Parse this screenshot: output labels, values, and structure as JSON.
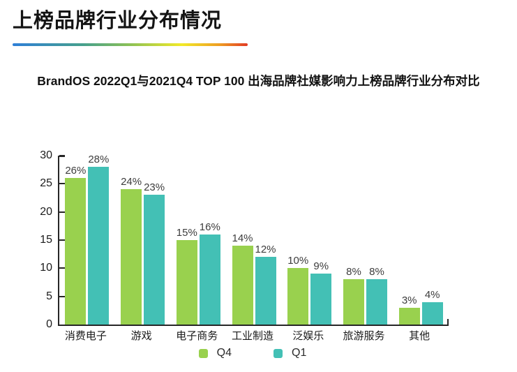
{
  "page": {
    "title": "上榜品牌行业分布情况",
    "subtitle": "BrandOS 2022Q1与2021Q4 TOP 100 出海品牌社媒影响力上榜品牌行业分布对比"
  },
  "chart_data": {
    "type": "bar",
    "title": "BrandOS 2022Q1与2021Q4 TOP 100 出海品牌社媒影响力上榜品牌行业分布对比",
    "categories": [
      "消费电子",
      "游戏",
      "电子商务",
      "工业制造",
      "泛娱乐",
      "旅游服务",
      "其他"
    ],
    "series": [
      {
        "name": "Q4",
        "color": "#99d14e",
        "values": [
          26,
          24,
          15,
          14,
          10,
          8,
          3
        ],
        "labels": [
          "26%",
          "24%",
          "15%",
          "14%",
          "10%",
          "8%",
          "3%"
        ]
      },
      {
        "name": "Q1",
        "color": "#43c0b5",
        "values": [
          28,
          23,
          16,
          12,
          9,
          8,
          4
        ],
        "labels": [
          "28%",
          "23%",
          "16%",
          "12%",
          "9%",
          "8%",
          "4%"
        ]
      }
    ],
    "xlabel": "",
    "ylabel": "",
    "ylim": [
      0,
      30
    ],
    "yticks": [
      0,
      5,
      10,
      15,
      20,
      25,
      30
    ],
    "grid": false,
    "legend_position": "bottom",
    "axis_color": "#262626",
    "accent_gradient": [
      "#2e7fd8",
      "#46a08c",
      "#f2ea28",
      "#e23a24"
    ]
  }
}
